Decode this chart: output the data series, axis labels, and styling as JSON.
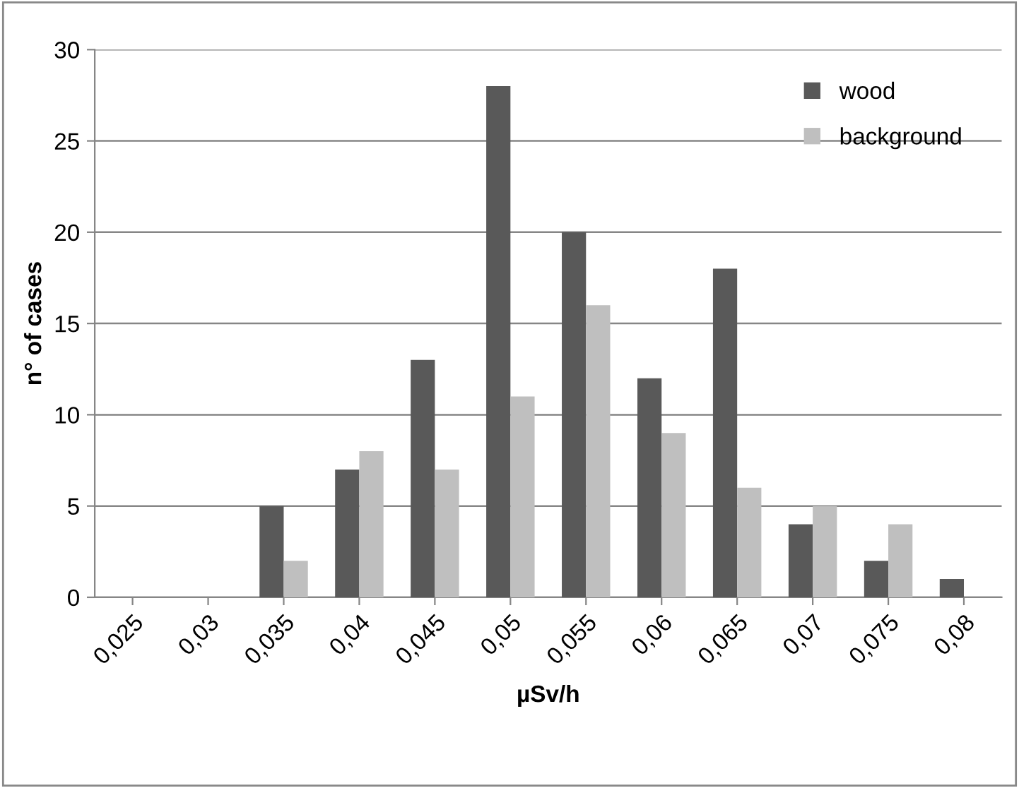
{
  "chart_data": {
    "type": "bar",
    "xlabel": "µSv/h",
    "ylabel": "n° of cases",
    "categories": [
      "0,025",
      "0,03",
      "0,035",
      "0,04",
      "0,045",
      "0,05",
      "0,055",
      "0,06",
      "0,065",
      "0,07",
      "0,075",
      "0,08"
    ],
    "series": [
      {
        "name": "wood",
        "color": "#595959",
        "values": [
          0,
          0,
          5,
          7,
          13,
          28,
          20,
          12,
          18,
          4,
          2,
          1
        ]
      },
      {
        "name": "background",
        "color": "#bfbfbf",
        "values": [
          0,
          0,
          2,
          8,
          7,
          11,
          16,
          9,
          6,
          5,
          4,
          0
        ]
      }
    ],
    "ylim": [
      0,
      30
    ],
    "yticks": [
      0,
      5,
      10,
      15,
      20,
      25,
      30
    ],
    "grid": "y",
    "legend": "top right"
  }
}
